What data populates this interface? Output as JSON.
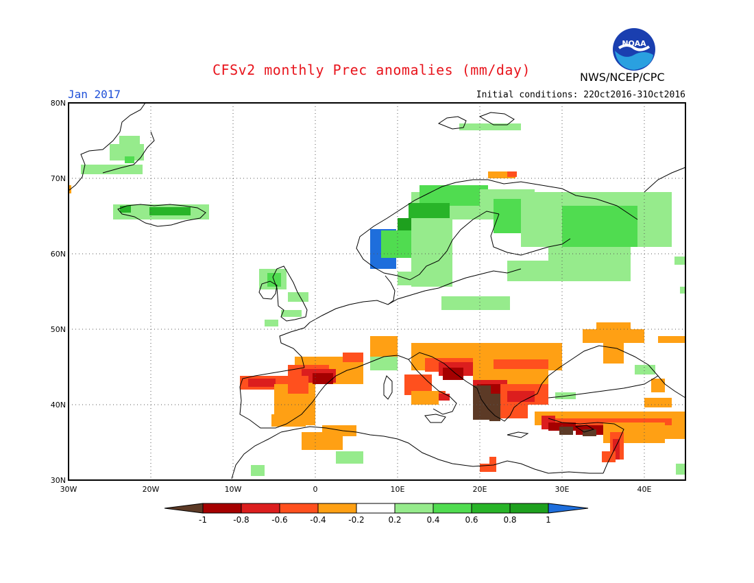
{
  "header": {
    "title": "CFSv2 monthly Prec anomalies (mm/day)",
    "month": "Jan 2017",
    "initial_conditions": "Initial conditions: 22Oct2016-31Oct2016",
    "agency": "NWS/NCEP/CPC",
    "logo_text": "NOAA"
  },
  "map": {
    "extent": {
      "lon_min": -30,
      "lon_max": 45,
      "lat_min": 30,
      "lat_max": 80
    },
    "lat_labels": [
      "30N",
      "40N",
      "50N",
      "60N",
      "70N",
      "80N"
    ],
    "lon_labels": [
      "30W",
      "20W",
      "10W",
      "0",
      "10E",
      "20E",
      "30E",
      "40E"
    ],
    "grid": true
  },
  "legend": {
    "labels": [
      "-1",
      "-0.8",
      "-0.6",
      "-0.4",
      "-0.2",
      "0.2",
      "0.4",
      "0.6",
      "0.8",
      "1"
    ],
    "colors": {
      "below_minus1": "#5c3a26",
      "m1_m08": "#a50000",
      "m08_m06": "#dc1e1e",
      "m06_m04": "#ff501e",
      "m04_m02": "#ffa014",
      "neutral": "#ffffff",
      "p02_p04": "#96eb8c",
      "p04_p06": "#50dc50",
      "p06_p08": "#28b428",
      "p08_p1": "#1ea01e",
      "above_1": "#1e6edc"
    }
  }
}
